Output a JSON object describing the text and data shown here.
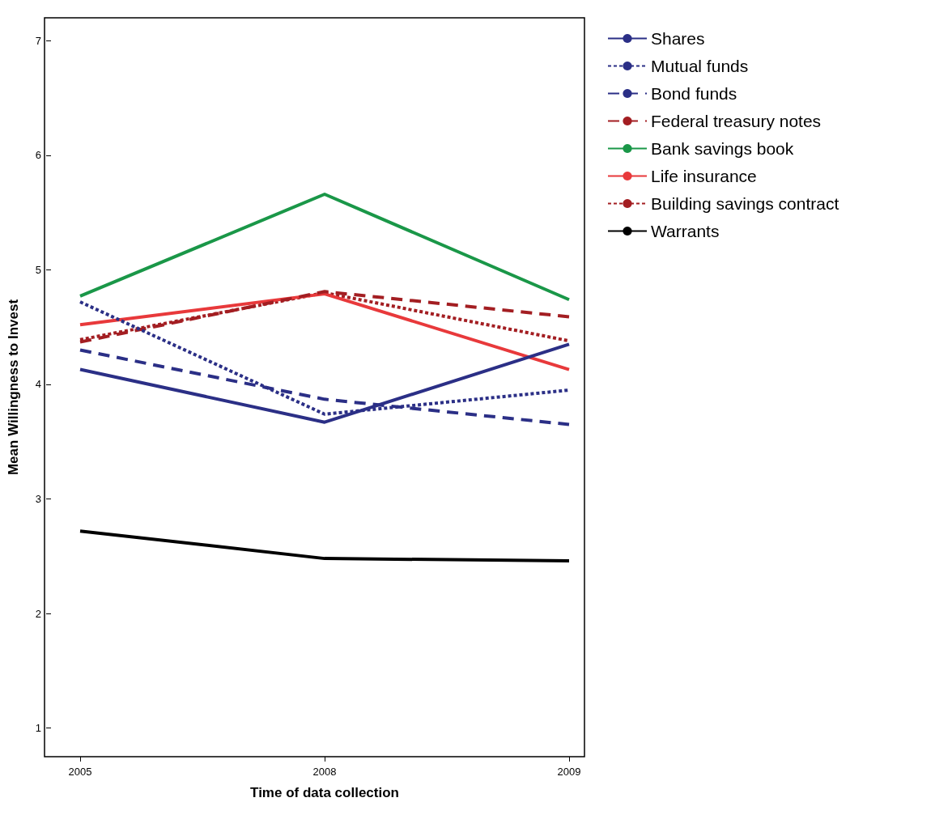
{
  "chart_data": {
    "type": "line",
    "xlabel": "Time of data collection",
    "ylabel": "Mean Willingness to Invest",
    "categories": [
      "2005",
      "2008",
      "2009"
    ],
    "ylim": [
      0.75,
      7.2
    ],
    "yticks": [
      1,
      2,
      3,
      4,
      5,
      6,
      7
    ],
    "legend": "right",
    "marker": "none",
    "series": [
      {
        "name": "Shares",
        "color": "#2b2f86",
        "line_style": "solid",
        "values": [
          4.13,
          3.67,
          4.35
        ]
      },
      {
        "name": "Mutual funds",
        "color": "#2b2f86",
        "line_style": "dotted",
        "values": [
          4.72,
          3.74,
          3.95
        ]
      },
      {
        "name": "Bond funds",
        "color": "#2b2f86",
        "line_style": "dashed",
        "values": [
          4.3,
          3.87,
          3.65
        ]
      },
      {
        "name": "Federal treasury notes",
        "color": "#a31e22",
        "line_style": "dashed",
        "values": [
          4.37,
          4.81,
          4.59
        ]
      },
      {
        "name": "Bank savings book",
        "color": "#1a9748",
        "line_style": "solid",
        "values": [
          4.77,
          5.66,
          4.74
        ]
      },
      {
        "name": "Life insurance",
        "color": "#e8393b",
        "line_style": "solid",
        "values": [
          4.52,
          4.79,
          4.13
        ]
      },
      {
        "name": "Building savings contract",
        "color": "#a31e22",
        "line_style": "dotted",
        "values": [
          4.39,
          4.8,
          4.38
        ]
      },
      {
        "name": "Warrants",
        "color": "#000000",
        "line_style": "solid",
        "values": [
          2.72,
          2.48,
          2.46
        ]
      }
    ]
  }
}
